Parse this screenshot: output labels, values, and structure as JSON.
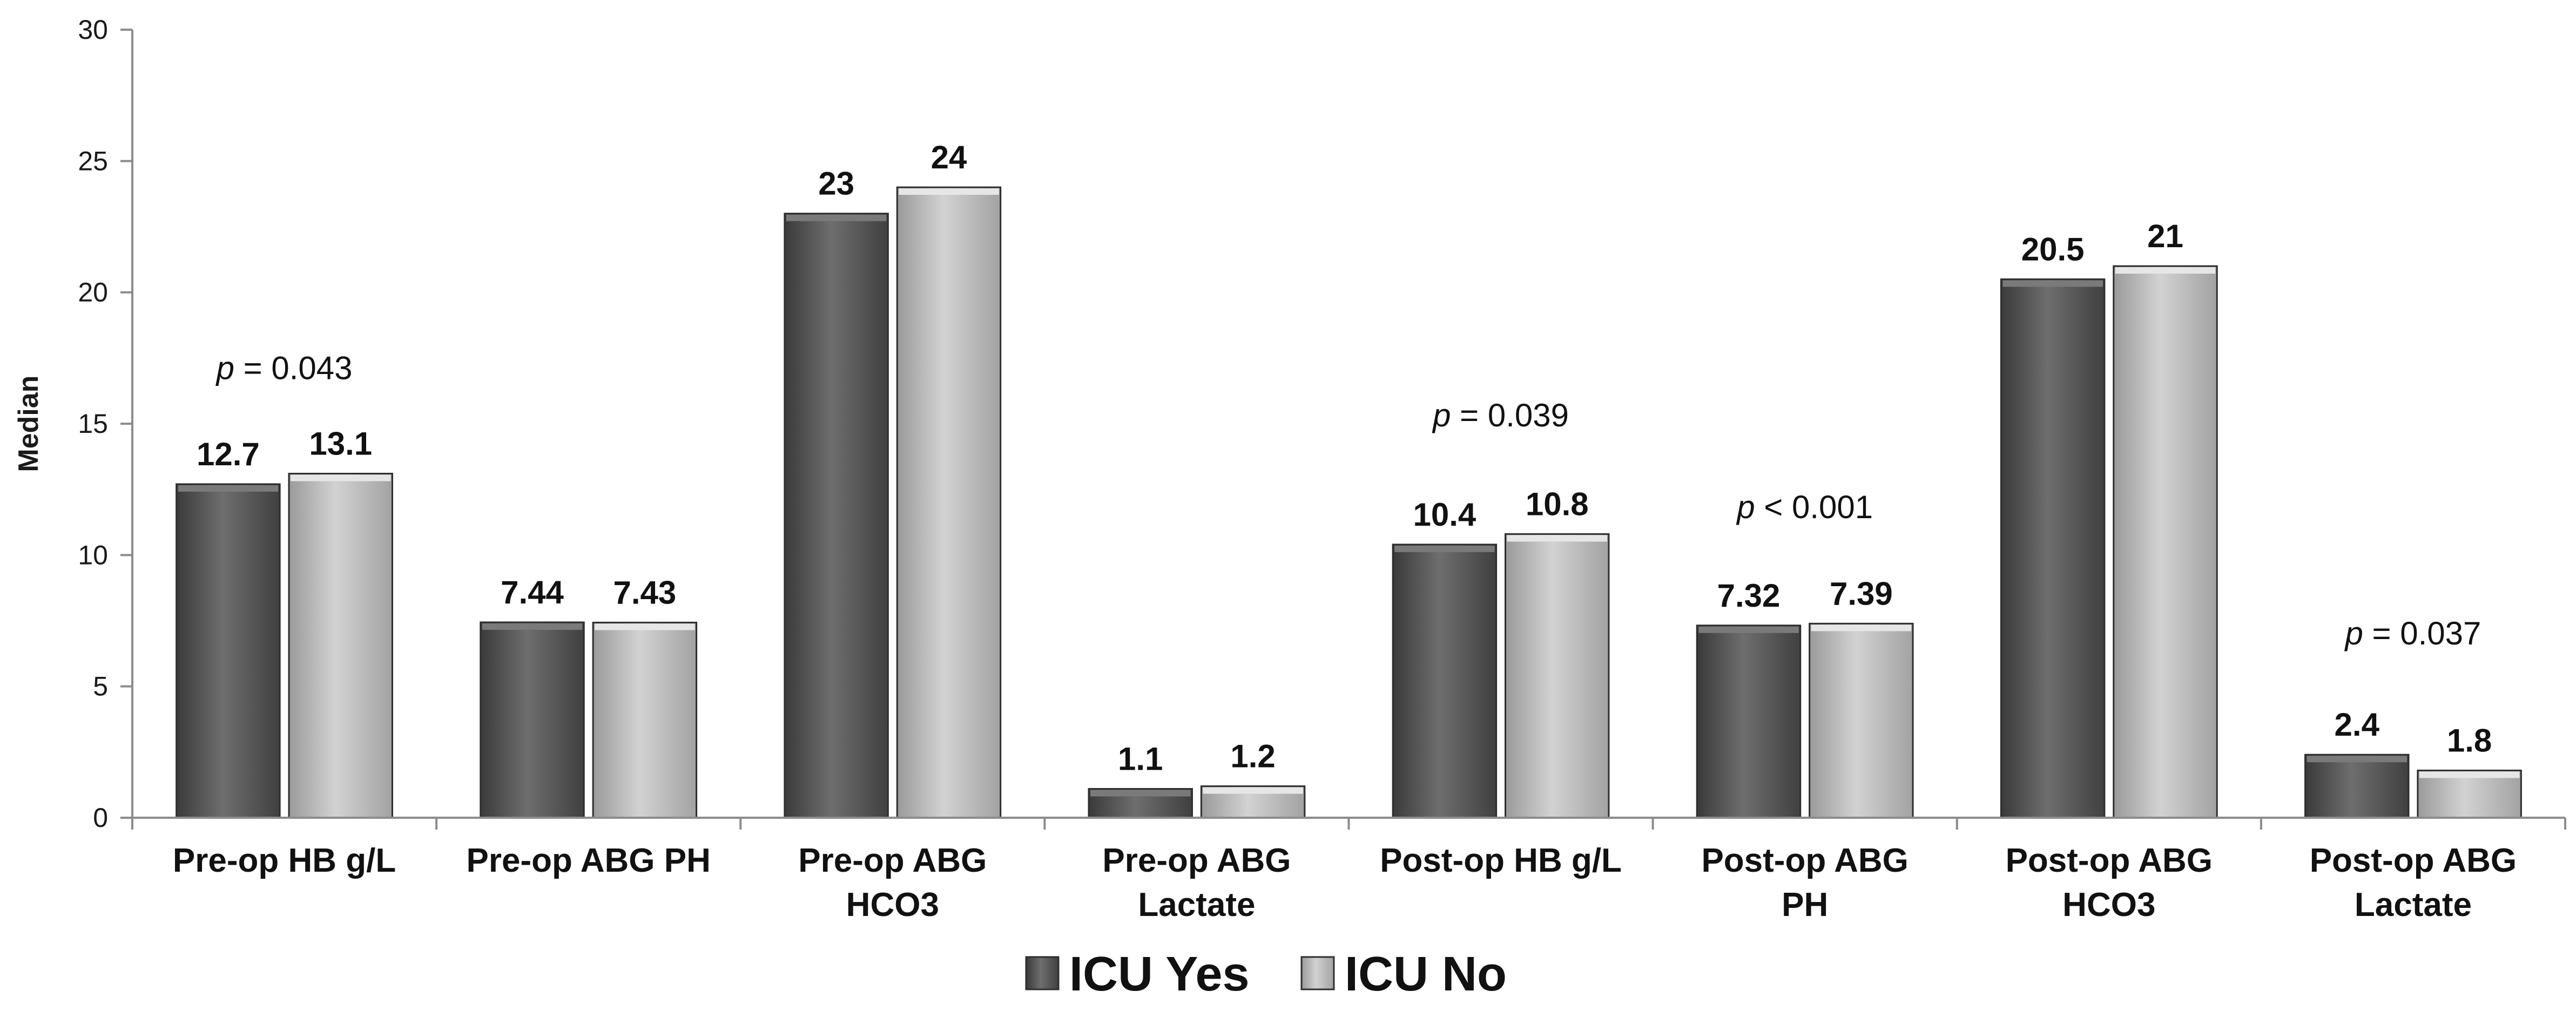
{
  "chart_data": {
    "type": "bar",
    "ylabel": "Median",
    "ylim": [
      0,
      30
    ],
    "yticks": [
      0,
      5,
      10,
      15,
      20,
      25,
      30
    ],
    "grid": false,
    "legend_position": "bottom-center",
    "categories": [
      [
        "Pre-op HB g/L"
      ],
      [
        "Pre-op ABG PH"
      ],
      [
        "Pre-op ABG",
        "HCO3"
      ],
      [
        "Pre-op ABG",
        "Lactate"
      ],
      [
        "Post-op HB g/L"
      ],
      [
        "Post-op ABG",
        "PH"
      ],
      [
        "Post-op ABG",
        "HCO3"
      ],
      [
        "Post-op ABG",
        "Lactate"
      ]
    ],
    "series": [
      {
        "name": "ICU Yes",
        "color": "#595959",
        "values": [
          12.7,
          7.44,
          23,
          1.1,
          10.4,
          7.32,
          20.5,
          2.4
        ],
        "labels": [
          "12.7",
          "7.44",
          "23",
          "1.1",
          "10.4",
          "7.32",
          "20.5",
          "2.4"
        ]
      },
      {
        "name": "ICU No",
        "color": "#b3b3b3",
        "values": [
          13.1,
          7.43,
          24,
          1.2,
          10.8,
          7.39,
          21,
          1.8
        ],
        "labels": [
          "13.1",
          "7.43",
          "24",
          "1.2",
          "10.8",
          "7.39",
          "21",
          "1.8"
        ]
      }
    ],
    "annotations": [
      {
        "category_index": 0,
        "prefix": "p",
        "text": " = 0.043",
        "y": 16.7
      },
      {
        "category_index": 4,
        "prefix": "p",
        "text": " = 0.039",
        "y": 14.9
      },
      {
        "category_index": 5,
        "prefix": "p",
        "text": " < 0.001",
        "y": 11.4
      },
      {
        "category_index": 7,
        "prefix": "p",
        "text": " = 0.037",
        "y": 6.6
      }
    ]
  }
}
